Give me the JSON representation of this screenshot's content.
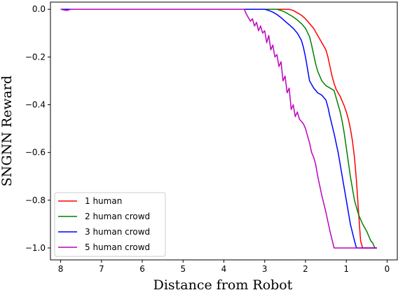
{
  "chart_data": {
    "type": "line",
    "title": "",
    "xlabel": "Distance from Robot",
    "ylabel": "SNGNN Reward",
    "xlim": [
      8.25,
      -0.25
    ],
    "ylim": [
      -1.05,
      0.03
    ],
    "x_ticks": [
      8,
      7,
      6,
      5,
      4,
      3,
      2,
      1,
      0
    ],
    "y_ticks": [
      0.0,
      -0.2,
      -0.4,
      -0.6,
      -0.8,
      -1.0
    ],
    "y_tick_labels": [
      "0.0",
      "−0.2",
      "−0.4",
      "−0.6",
      "−0.8",
      "−1.0"
    ],
    "grid": false,
    "legend_position": "lower-left",
    "series": [
      {
        "name": "1 human",
        "color": "#ff0000",
        "x": [
          8.0,
          7.0,
          6.0,
          5.0,
          4.0,
          3.0,
          2.4,
          2.3,
          2.2,
          2.1,
          2.0,
          1.9,
          1.8,
          1.7,
          1.6,
          1.5,
          1.45,
          1.4,
          1.35,
          1.3,
          1.25,
          1.2,
          1.15,
          1.1,
          1.05,
          1.0,
          0.95,
          0.9,
          0.85,
          0.8,
          0.75,
          0.7,
          0.65,
          0.6,
          0.55,
          0.5,
          0.45,
          0.4,
          0.35,
          0.3,
          0.25
        ],
        "y": [
          0.0,
          0.0,
          0.0,
          0.0,
          0.0,
          0.0,
          0.0,
          -0.005,
          -0.015,
          -0.025,
          -0.04,
          -0.06,
          -0.08,
          -0.11,
          -0.14,
          -0.17,
          -0.2,
          -0.24,
          -0.28,
          -0.31,
          -0.335,
          -0.35,
          -0.365,
          -0.385,
          -0.405,
          -0.43,
          -0.46,
          -0.5,
          -0.55,
          -0.62,
          -0.72,
          -0.85,
          -0.97,
          -1.0,
          -1.0,
          -1.0,
          -1.0,
          -1.0,
          -1.0,
          -1.0,
          -1.0
        ]
      },
      {
        "name": "2 human crowd",
        "color": "#008000",
        "x": [
          8.0,
          7.0,
          6.0,
          5.0,
          4.0,
          3.0,
          2.7,
          2.6,
          2.5,
          2.4,
          2.3,
          2.2,
          2.1,
          2.0,
          1.9,
          1.85,
          1.8,
          1.75,
          1.7,
          1.65,
          1.6,
          1.5,
          1.4,
          1.3,
          1.25,
          1.2,
          1.15,
          1.1,
          1.05,
          1.0,
          0.9,
          0.8,
          0.7,
          0.6,
          0.5,
          0.45,
          0.4,
          0.35,
          0.3,
          0.25
        ],
        "y": [
          0.0,
          0.0,
          0.0,
          0.0,
          0.0,
          0.0,
          0.0,
          -0.005,
          -0.012,
          -0.022,
          -0.032,
          -0.045,
          -0.06,
          -0.08,
          -0.115,
          -0.15,
          -0.19,
          -0.23,
          -0.26,
          -0.28,
          -0.3,
          -0.32,
          -0.33,
          -0.34,
          -0.37,
          -0.4,
          -0.43,
          -0.47,
          -0.52,
          -0.58,
          -0.7,
          -0.8,
          -0.86,
          -0.9,
          -0.93,
          -0.95,
          -0.97,
          -0.98,
          -1.0,
          -1.0
        ]
      },
      {
        "name": "3 human crowd",
        "color": "#0000ff",
        "x": [
          8.0,
          7.0,
          6.0,
          5.0,
          4.0,
          3.0,
          2.9,
          2.8,
          2.7,
          2.6,
          2.5,
          2.4,
          2.3,
          2.2,
          2.1,
          2.05,
          2.0,
          1.95,
          1.9,
          1.8,
          1.7,
          1.6,
          1.5,
          1.45,
          1.4,
          1.3,
          1.2,
          1.1,
          1.0,
          0.9,
          0.8,
          0.75,
          0.7,
          0.6,
          0.5,
          0.4,
          0.3,
          0.25
        ],
        "y": [
          0.0,
          0.0,
          0.0,
          0.0,
          0.0,
          0.0,
          -0.005,
          -0.012,
          -0.022,
          -0.035,
          -0.05,
          -0.065,
          -0.08,
          -0.1,
          -0.13,
          -0.16,
          -0.2,
          -0.25,
          -0.3,
          -0.33,
          -0.35,
          -0.36,
          -0.38,
          -0.41,
          -0.45,
          -0.52,
          -0.6,
          -0.7,
          -0.8,
          -0.9,
          -0.97,
          -1.0,
          -1.0,
          -1.0,
          -1.0,
          -1.0,
          -1.0,
          -1.0
        ]
      },
      {
        "name": "5 human crowd",
        "color": "#bf00bf",
        "x": [
          8.0,
          7.85,
          7.75,
          7.0,
          6.0,
          5.0,
          4.0,
          3.5,
          3.45,
          3.4,
          3.35,
          3.3,
          3.25,
          3.2,
          3.15,
          3.1,
          3.05,
          3.0,
          2.95,
          2.9,
          2.85,
          2.8,
          2.75,
          2.7,
          2.65,
          2.6,
          2.55,
          2.5,
          2.45,
          2.4,
          2.35,
          2.3,
          2.25,
          2.2,
          2.15,
          2.1,
          2.05,
          2.0,
          1.95,
          1.9,
          1.85,
          1.8,
          1.75,
          1.7,
          1.6,
          1.5,
          1.4,
          1.3,
          1.25,
          1.2,
          1.1,
          1.0,
          0.9,
          0.8,
          0.7,
          0.6,
          0.5,
          0.4,
          0.3,
          0.25
        ],
        "y": [
          0.0,
          -0.005,
          0.0,
          0.0,
          0.0,
          0.0,
          0.0,
          0.0,
          -0.02,
          -0.035,
          -0.05,
          -0.04,
          -0.07,
          -0.055,
          -0.09,
          -0.07,
          -0.1,
          -0.09,
          -0.14,
          -0.11,
          -0.17,
          -0.15,
          -0.2,
          -0.19,
          -0.24,
          -0.22,
          -0.3,
          -0.28,
          -0.35,
          -0.33,
          -0.42,
          -0.4,
          -0.45,
          -0.43,
          -0.46,
          -0.47,
          -0.48,
          -0.5,
          -0.53,
          -0.56,
          -0.6,
          -0.62,
          -0.65,
          -0.7,
          -0.78,
          -0.85,
          -0.93,
          -1.0,
          -1.0,
          -1.0,
          -1.0,
          -1.0,
          -1.0,
          -1.0,
          -1.0,
          -1.0,
          -1.0,
          -1.0,
          -1.0,
          -1.0
        ]
      }
    ]
  }
}
